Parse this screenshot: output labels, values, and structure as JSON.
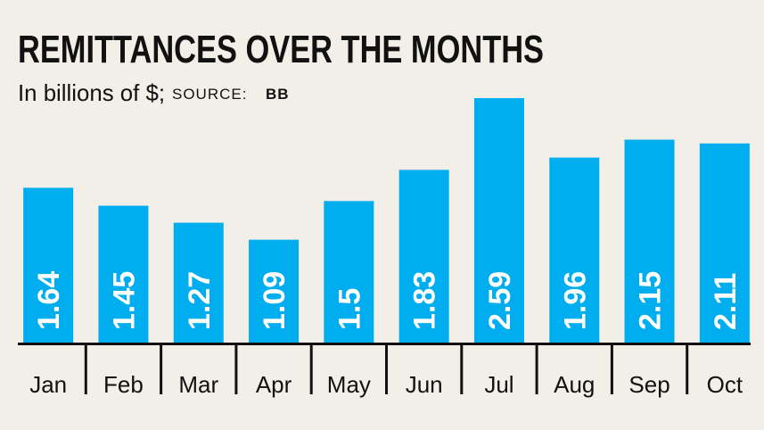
{
  "chart_data": {
    "type": "bar",
    "title": "REMITTANCES OVER THE MONTHS",
    "subtitle": "In billions of $;",
    "source_label": "SOURCE:",
    "source": "BB",
    "categories": [
      "Jan",
      "Feb",
      "Mar",
      "Apr",
      "May",
      "Jun",
      "Jul",
      "Aug",
      "Sep",
      "Oct"
    ],
    "values": [
      1.64,
      1.45,
      1.27,
      1.09,
      1.5,
      1.83,
      2.59,
      1.96,
      2.15,
      2.11
    ],
    "color": "#00aeef"
  }
}
